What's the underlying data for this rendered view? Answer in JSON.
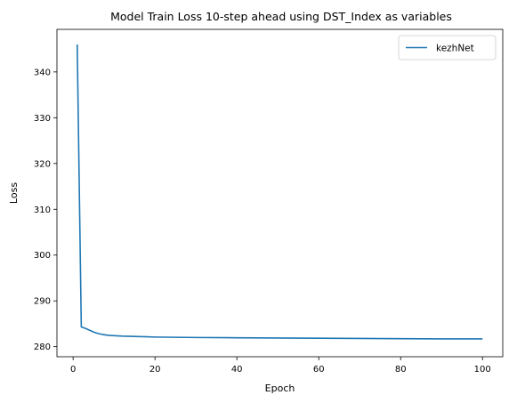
{
  "chart_data": {
    "type": "line",
    "title": "Model Train Loss 10-step ahead using DST_Index as variables",
    "xlabel": "Epoch",
    "ylabel": "Loss",
    "xlim": [
      -3.95,
      104.95
    ],
    "ylim": [
      277.8,
      349.3
    ],
    "xticks": [
      0,
      20,
      40,
      60,
      80,
      100
    ],
    "yticks": [
      280,
      290,
      300,
      310,
      320,
      330,
      340
    ],
    "grid": false,
    "legend_position": "top-right",
    "series": [
      {
        "name": "kezhNet",
        "color": "#1f77b4",
        "x": [
          1,
          2,
          3,
          4,
          5,
          6,
          7,
          8,
          9,
          10,
          12,
          14,
          16,
          18,
          20,
          25,
          30,
          40,
          50,
          60,
          70,
          80,
          90,
          100
        ],
        "y": [
          346.0,
          284.3,
          284.0,
          283.6,
          283.2,
          282.9,
          282.7,
          282.55,
          282.45,
          282.4,
          282.3,
          282.25,
          282.2,
          282.15,
          282.1,
          282.05,
          282.0,
          281.95,
          281.9,
          281.85,
          281.8,
          281.75,
          281.7,
          281.7
        ]
      }
    ]
  }
}
